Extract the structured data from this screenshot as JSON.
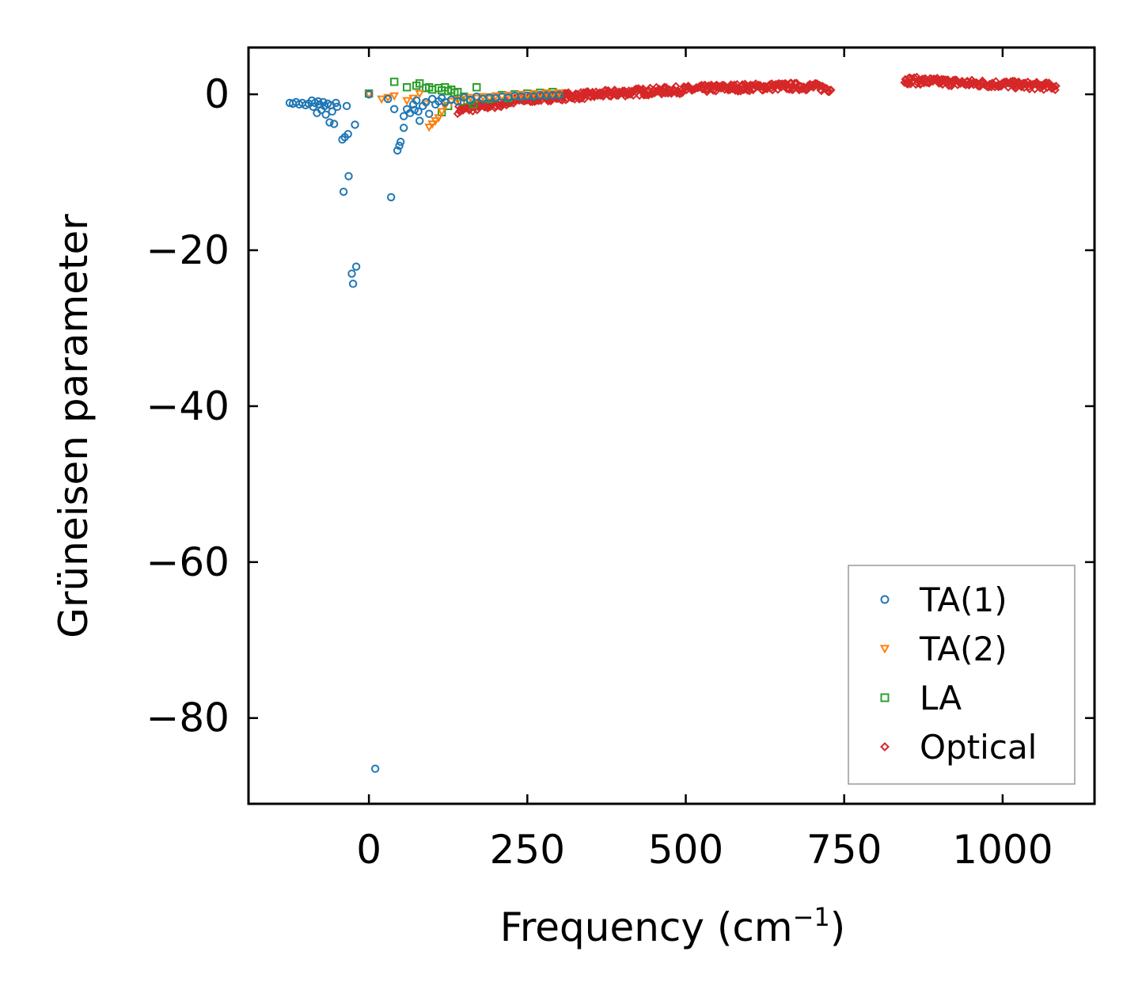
{
  "chart_data": {
    "type": "scatter",
    "title": "",
    "xlabel": "Frequency (cm",
    "xlabel_sup": "−1",
    "xlabel_suffix": ")",
    "ylabel": "Grüneisen parameter",
    "xlim": [
      -190,
      1145
    ],
    "ylim": [
      -91,
      6
    ],
    "xticks": [
      0,
      250,
      500,
      750,
      1000
    ],
    "xtick_labels": [
      "0",
      "250",
      "500",
      "750",
      "1000"
    ],
    "yticks": [
      0,
      -20,
      -40,
      -60,
      -80
    ],
    "ytick_labels": [
      "0",
      "−20",
      "−40",
      "−60",
      "−80"
    ],
    "grid": false,
    "legend_position": "lower-right",
    "series": [
      {
        "name": "TA(1)",
        "marker": "circle",
        "color": "#1f77b4",
        "points": [
          [
            -125,
            -1.1
          ],
          [
            -120,
            -1.2
          ],
          [
            -115,
            -1.0
          ],
          [
            -110,
            -1.3
          ],
          [
            -105,
            -1.1
          ],
          [
            -100,
            -1.4
          ],
          [
            -95,
            -1.2
          ],
          [
            -90,
            -0.8
          ],
          [
            -88,
            -1.6
          ],
          [
            -85,
            -1.1
          ],
          [
            -82,
            -2.4
          ],
          [
            -80,
            -0.9
          ],
          [
            -78,
            -1.3
          ],
          [
            -75,
            -2.0
          ],
          [
            -72,
            -1.0
          ],
          [
            -70,
            -1.5
          ],
          [
            -68,
            -2.6
          ],
          [
            -65,
            -1.2
          ],
          [
            -62,
            -3.6
          ],
          [
            -60,
            -1.4
          ],
          [
            -58,
            -2.2
          ],
          [
            -55,
            -3.8
          ],
          [
            -52,
            -1.1
          ],
          [
            -50,
            -1.6
          ],
          [
            -42,
            -5.8
          ],
          [
            -38,
            -5.5
          ],
          [
            -35,
            -1.5
          ],
          [
            -33,
            -5.1
          ],
          [
            -40,
            -12.5
          ],
          [
            -32,
            -10.5
          ],
          [
            -22,
            -3.9
          ],
          [
            -27,
            -23.0
          ],
          [
            -25,
            -24.3
          ],
          [
            -20,
            -22.1
          ],
          [
            10,
            -86.5
          ],
          [
            35,
            -13.2
          ],
          [
            40,
            -1.9
          ],
          [
            45,
            -7.2
          ],
          [
            48,
            -6.6
          ],
          [
            50,
            -6.1
          ],
          [
            55,
            -4.3
          ],
          [
            55,
            -2.8
          ],
          [
            60,
            -1.9
          ],
          [
            65,
            -2.4
          ],
          [
            70,
            -1.3
          ],
          [
            72,
            -2.0
          ],
          [
            75,
            -0.8
          ],
          [
            78,
            -2.2
          ],
          [
            80,
            -3.4
          ],
          [
            85,
            -1.5
          ],
          [
            90,
            -1.0
          ],
          [
            95,
            -2.5
          ],
          [
            100,
            -0.6
          ],
          [
            105,
            -1.3
          ],
          [
            110,
            -0.9
          ],
          [
            115,
            -0.5
          ],
          [
            120,
            -1.0
          ],
          [
            130,
            -0.7
          ],
          [
            140,
            -0.9
          ],
          [
            150,
            -0.4
          ],
          [
            160,
            -0.7
          ],
          [
            170,
            -0.3
          ],
          [
            180,
            -0.6
          ],
          [
            190,
            -0.4
          ],
          [
            200,
            -0.5
          ],
          [
            210,
            -0.3
          ],
          [
            220,
            -0.4
          ],
          [
            230,
            -0.2
          ],
          [
            240,
            -0.3
          ],
          [
            250,
            -0.2
          ],
          [
            260,
            -0.3
          ],
          [
            270,
            -0.1
          ],
          [
            280,
            -0.2
          ],
          [
            290,
            -0.1
          ],
          [
            300,
            -0.1
          ],
          [
            30,
            -0.6
          ],
          [
            0,
            0.0
          ]
        ]
      },
      {
        "name": "TA(2)",
        "marker": "triangle-down",
        "color": "#ff7f0e",
        "points": [
          [
            0,
            0.0
          ],
          [
            20,
            -0.6
          ],
          [
            30,
            -0.4
          ],
          [
            40,
            -0.2
          ],
          [
            60,
            -0.8
          ],
          [
            70,
            -0.5
          ],
          [
            80,
            0.1
          ],
          [
            90,
            -1.2
          ],
          [
            95,
            -4.2
          ],
          [
            100,
            -3.8
          ],
          [
            105,
            -3.4
          ],
          [
            110,
            -3.0
          ],
          [
            115,
            -2.2
          ],
          [
            120,
            -1.5
          ],
          [
            130,
            -0.9
          ],
          [
            140,
            -0.7
          ],
          [
            150,
            -0.6
          ],
          [
            160,
            -0.4
          ],
          [
            170,
            -0.5
          ],
          [
            180,
            -0.3
          ],
          [
            190,
            -0.4
          ],
          [
            200,
            -0.2
          ],
          [
            210,
            -0.3
          ],
          [
            220,
            -0.1
          ],
          [
            230,
            -0.2
          ],
          [
            240,
            0.0
          ],
          [
            250,
            -0.1
          ],
          [
            260,
            0.1
          ],
          [
            270,
            0.0
          ],
          [
            280,
            0.2
          ],
          [
            290,
            0.1
          ],
          [
            300,
            0.2
          ]
        ]
      },
      {
        "name": "LA",
        "marker": "square",
        "color": "#2ca02c",
        "points": [
          [
            0,
            0.1
          ],
          [
            40,
            1.6
          ],
          [
            60,
            0.9
          ],
          [
            75,
            1.1
          ],
          [
            80,
            1.4
          ],
          [
            90,
            0.8
          ],
          [
            95,
            0.9
          ],
          [
            100,
            0.6
          ],
          [
            110,
            0.8
          ],
          [
            115,
            0.5
          ],
          [
            120,
            0.9
          ],
          [
            125,
            0.4
          ],
          [
            130,
            0.6
          ],
          [
            135,
            0.2
          ],
          [
            140,
            0.3
          ],
          [
            150,
            -0.3
          ],
          [
            160,
            -0.8
          ],
          [
            165,
            -1.3
          ],
          [
            170,
            0.9
          ],
          [
            180,
            -0.4
          ],
          [
            190,
            -0.6
          ],
          [
            200,
            -0.3
          ],
          [
            210,
            -0.1
          ],
          [
            220,
            -0.5
          ],
          [
            230,
            0.0
          ],
          [
            240,
            -0.2
          ],
          [
            250,
            0.1
          ],
          [
            260,
            -0.1
          ],
          [
            270,
            0.2
          ],
          [
            280,
            0.0
          ],
          [
            290,
            0.3
          ],
          [
            300,
            0.1
          ],
          [
            115,
            -2.3
          ],
          [
            125,
            -1.5
          ],
          [
            145,
            -0.9
          ]
        ]
      },
      {
        "name": "Optical",
        "marker": "diamond",
        "color": "#d62728",
        "segments": [
          {
            "x": [
              140,
              200,
              250,
              300,
              350,
              400,
              450,
              500,
              550,
              600,
              650,
              700,
              730
            ],
            "y": [
              -2.0,
              -1.3,
              -0.6,
              -0.3,
              -0.1,
              0.2,
              0.4,
              0.6,
              0.8,
              0.9,
              1.0,
              1.0,
              0.7
            ]
          },
          {
            "x": [
              845,
              900,
              950,
              1000,
              1050,
              1085
            ],
            "y": [
              1.8,
              1.6,
              1.4,
              1.3,
              1.1,
              1.0
            ]
          }
        ]
      }
    ]
  }
}
